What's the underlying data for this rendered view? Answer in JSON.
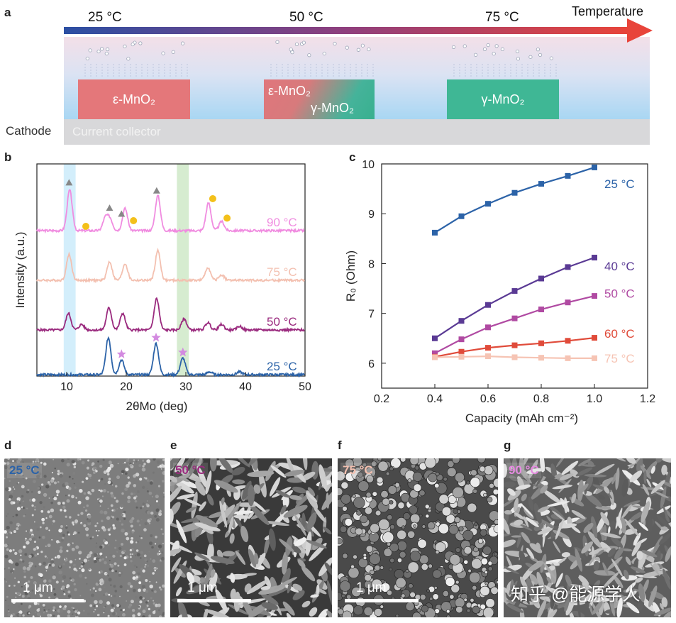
{
  "panel_labels": {
    "a": "a",
    "b": "b",
    "c": "c",
    "d": "d",
    "e": "e",
    "f": "f",
    "g": "g"
  },
  "panel_a": {
    "arrow_label": "Temperature",
    "temps": [
      "25 °C",
      "50 °C",
      "75 °C"
    ],
    "boxes": {
      "eps": "ε-MnO₂",
      "mix_top": "ε-MnO₂",
      "mix_bottom": "γ-MnO₂",
      "gam": "γ-MnO₂"
    },
    "collector": "Current collector",
    "cathode": "Cathode",
    "colors": {
      "arrow_start": "#2b4fa3",
      "arrow_end": "#e8443a",
      "eps": "#e4777a",
      "gam": "#3fb795"
    }
  },
  "chart_data": [
    {
      "type": "line",
      "title": "",
      "xlabel": "2θMo (deg)",
      "ylabel": "Intensity (a.u.)",
      "xlim": [
        5,
        50
      ],
      "x_ticks": [
        "10",
        "20",
        "30",
        "40",
        "50"
      ],
      "highlight_bands": [
        [
          9.5,
          11.5
        ],
        [
          28.5,
          30.5
        ]
      ],
      "series": [
        {
          "name": "90 °C",
          "color": "#f08ce0",
          "offset": 3,
          "peaks": [
            [
              10.5,
              2.2
            ],
            [
              16.5,
              0.7
            ],
            [
              17.3,
              0.6
            ],
            [
              19.8,
              1.2
            ],
            [
              25.3,
              1.9
            ],
            [
              33.8,
              1.5
            ],
            [
              36.0,
              0.5
            ]
          ]
        },
        {
          "name": "75 °C",
          "color": "#f3c0b0",
          "offset": 2,
          "peaks": [
            [
              10.4,
              1.4
            ],
            [
              17.2,
              1.0
            ],
            [
              19.8,
              0.9
            ],
            [
              25.3,
              1.6
            ],
            [
              33.7,
              0.7
            ],
            [
              36.0,
              0.3
            ]
          ]
        },
        {
          "name": "50 °C",
          "color": "#9a2a7e",
          "offset": 1,
          "peaks": [
            [
              10.3,
              0.9
            ],
            [
              12.5,
              0.3
            ],
            [
              17.1,
              1.2
            ],
            [
              19.4,
              0.9
            ],
            [
              25.1,
              1.7
            ],
            [
              29.7,
              0.6
            ],
            [
              33.7,
              0.4
            ],
            [
              36.0,
              0.3
            ],
            [
              39.0,
              0.2
            ]
          ]
        },
        {
          "name": "25 °C",
          "color": "#2c63a8",
          "offset": 0,
          "peaks": [
            [
              17.0,
              2.0
            ],
            [
              19.2,
              0.8
            ],
            [
              25.0,
              1.7
            ],
            [
              29.5,
              0.9
            ],
            [
              34.0,
              0.15
            ],
            [
              39.0,
              0.15
            ]
          ]
        }
      ],
      "markers": [
        {
          "type": "triangle",
          "color": "#888888",
          "x": 10.4,
          "series": "90 °C"
        },
        {
          "type": "triangle",
          "color": "#888888",
          "x": 17.2,
          "series": "90 °C"
        },
        {
          "type": "triangle",
          "color": "#888888",
          "x": 19.2,
          "series": "90 °C"
        },
        {
          "type": "triangle",
          "color": "#888888",
          "x": 25.1,
          "series": "90 °C"
        },
        {
          "type": "circle",
          "color": "#f3c01a",
          "x": 12.5,
          "series": "90 °C"
        },
        {
          "type": "circle",
          "color": "#f3c01a",
          "x": 20.5,
          "series": "90 °C"
        },
        {
          "type": "circle",
          "color": "#f3c01a",
          "x": 33.8,
          "series": "90 °C"
        },
        {
          "type": "circle",
          "color": "#f3c01a",
          "x": 36.2,
          "series": "90 °C"
        },
        {
          "type": "star",
          "color": "#d38ae0",
          "x": 19.2,
          "series": "25 °C"
        },
        {
          "type": "star",
          "color": "#d38ae0",
          "x": 25.0,
          "series": "25 °C"
        },
        {
          "type": "star",
          "color": "#d38ae0",
          "x": 29.5,
          "series": "25 °C"
        }
      ]
    },
    {
      "type": "line",
      "title": "",
      "xlabel": "Capacity (mAh cm⁻²)",
      "ylabel": "R₀ (Ohm)",
      "xlim": [
        0.2,
        1.2
      ],
      "ylim": [
        5.5,
        10
      ],
      "x_ticks": [
        "0.2",
        "0.4",
        "0.6",
        "0.8",
        "1.0",
        "1.2"
      ],
      "y_ticks": [
        "6",
        "7",
        "8",
        "9",
        "10"
      ],
      "x": [
        0.4,
        0.5,
        0.6,
        0.7,
        0.8,
        0.9,
        1.0
      ],
      "series": [
        {
          "name": "25 °C",
          "color": "#2c63a8",
          "values": [
            8.62,
            8.95,
            9.2,
            9.42,
            9.6,
            9.76,
            9.93
          ]
        },
        {
          "name": "40 °C",
          "color": "#5a3a94",
          "values": [
            6.5,
            6.85,
            7.17,
            7.45,
            7.7,
            7.93,
            8.12
          ]
        },
        {
          "name": "50 °C",
          "color": "#b04aa2",
          "values": [
            6.2,
            6.48,
            6.72,
            6.9,
            7.08,
            7.22,
            7.35
          ]
        },
        {
          "name": "60 °C",
          "color": "#e04b3a",
          "values": [
            6.13,
            6.23,
            6.31,
            6.36,
            6.4,
            6.45,
            6.51
          ]
        },
        {
          "name": "75 °C",
          "color": "#f6c4b4",
          "values": [
            6.12,
            6.13,
            6.14,
            6.12,
            6.11,
            6.1,
            6.1
          ]
        }
      ]
    }
  ],
  "sem": [
    {
      "label": "25 °C",
      "label_color": "#2c63a8",
      "scale": "1 μm"
    },
    {
      "label": "50 °C",
      "label_color": "#9a2a7e",
      "scale": "1 μm"
    },
    {
      "label": "75 °C",
      "label_color": "#f3c0b0",
      "scale": "1 μm"
    },
    {
      "label": "90 °C",
      "label_color": "#e58ae0",
      "scale": ""
    }
  ],
  "watermark": "知乎 @能源学人"
}
